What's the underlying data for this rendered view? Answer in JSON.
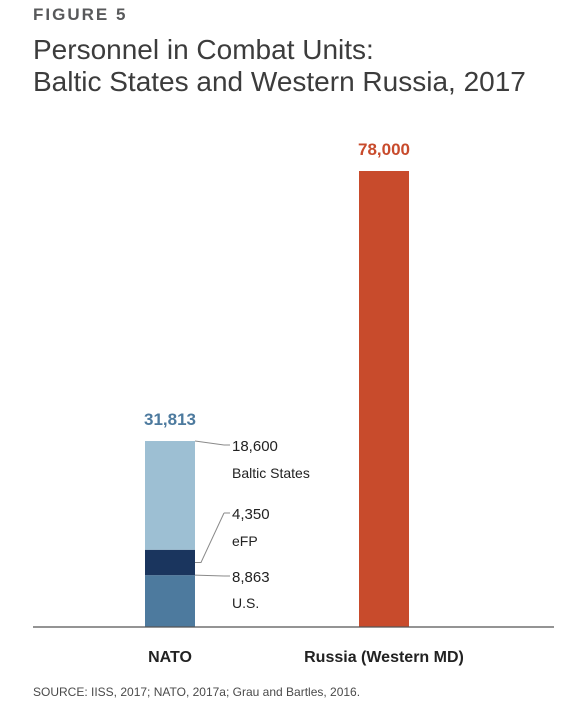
{
  "figure_label": "FIGURE 5",
  "title_lines": [
    "Personnel in Combat Units:",
    "Baltic States and Western Russia, 2017"
  ],
  "source": "SOURCE: IISS, 2017; NATO, 2017a; Grau and Bartles, 2016.",
  "colors": {
    "baltic_states": "#9dbfd3",
    "efp": "#1a355e",
    "us": "#4d7a9e",
    "russia": "#c84b2c",
    "nato_total_label": "#4d7a9e",
    "russia_total_label": "#c84b2c",
    "axis": "#555555",
    "text": "#222222"
  },
  "chart_data": {
    "type": "bar",
    "stacked": true,
    "categories": [
      "NATO",
      "Russia (Western MD)"
    ],
    "series": [
      {
        "name": "U.S.",
        "values": [
          8863,
          0
        ],
        "value_labels": [
          "8,863",
          ""
        ]
      },
      {
        "name": "eFP",
        "values": [
          4350,
          0
        ],
        "value_labels": [
          "4,350",
          ""
        ]
      },
      {
        "name": "Baltic States",
        "values": [
          18600,
          0
        ],
        "value_labels": [
          "18,600",
          ""
        ]
      },
      {
        "name": "",
        "values": [
          0,
          78000
        ],
        "value_labels": [
          "",
          ""
        ]
      }
    ],
    "totals": [
      31813,
      78000
    ],
    "total_labels": [
      "31,813",
      "78,000"
    ],
    "ylim": [
      0,
      78000
    ],
    "grid": false,
    "legend": "inline labels to right of NATO bar"
  }
}
